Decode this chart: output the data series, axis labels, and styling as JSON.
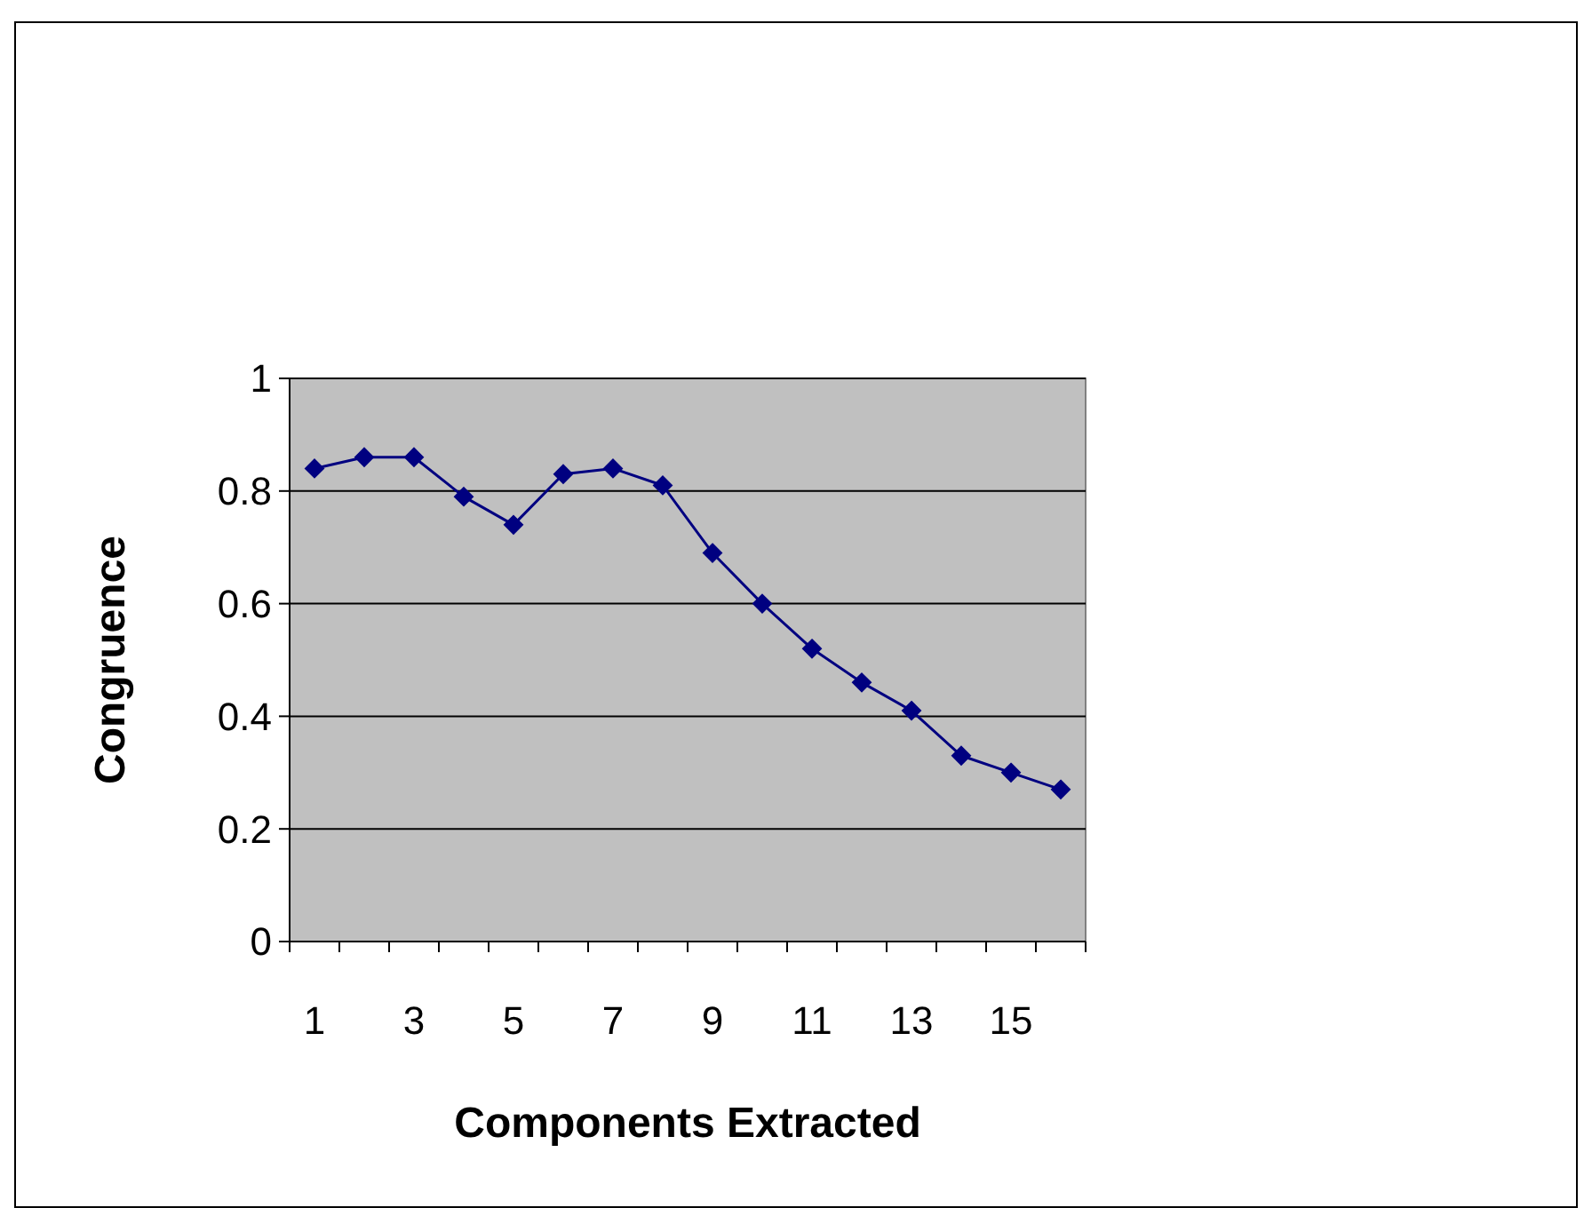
{
  "chart_data": {
    "type": "line",
    "xlabel": "Components Extracted",
    "ylabel": "Congruence",
    "x": [
      1,
      2,
      3,
      4,
      5,
      6,
      7,
      8,
      9,
      10,
      11,
      12,
      13,
      14,
      15,
      16
    ],
    "xlim": [
      0.5,
      16.5
    ],
    "xticks": [
      1,
      3,
      5,
      7,
      9,
      11,
      13,
      15,
      {
        "value": 0.5,
        "label": null
      },
      {
        "value": 1.5,
        "label": null
      },
      {
        "value": 2.5,
        "label": null
      },
      {
        "value": 3.5,
        "label": null
      },
      {
        "value": 4.5,
        "label": null
      },
      {
        "value": 5.5,
        "label": null
      },
      {
        "value": 6.5,
        "label": null
      },
      {
        "value": 7.5,
        "label": null
      },
      {
        "value": 8.5,
        "label": null
      },
      {
        "value": 9.5,
        "label": null
      },
      {
        "value": 10.5,
        "label": null
      },
      {
        "value": 11.5,
        "label": null
      },
      {
        "value": 12.5,
        "label": null
      },
      {
        "value": 13.5,
        "label": null
      },
      {
        "value": 14.5,
        "label": null
      },
      {
        "value": 15.5,
        "label": null
      },
      {
        "value": 16.5,
        "label": null
      }
    ],
    "series": [
      {
        "color": "#000080",
        "values": [
          0.84,
          0.86,
          0.86,
          0.79,
          0.74,
          0.83,
          0.84,
          0.81,
          0.69,
          0.6,
          0.52,
          0.46,
          0.41,
          0.33,
          0.3,
          0.27
        ]
      }
    ],
    "ylim": [
      0,
      1
    ],
    "yticks": [
      0,
      0.2,
      0.4,
      0.6,
      0.8,
      1
    ],
    "grid": "y",
    "marker": "diamond",
    "line_style": "solid"
  }
}
